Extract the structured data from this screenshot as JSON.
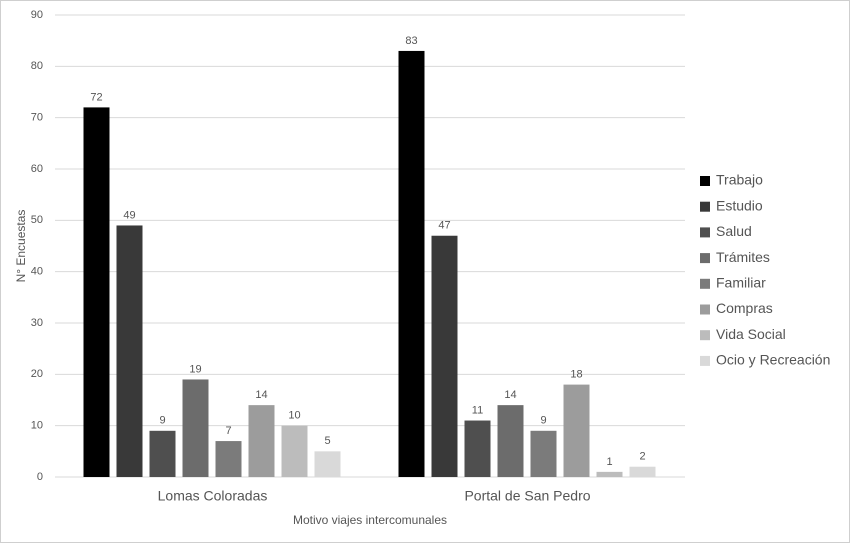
{
  "chart_data": {
    "type": "bar",
    "x_label": "Motivo viajes intercomunales",
    "y_label": "N° Encuestas",
    "categories": [
      "Lomas Coloradas",
      "Portal de San Pedro"
    ],
    "series": [
      {
        "name": "Trabajo",
        "color": "#000000",
        "values": [
          72,
          83
        ]
      },
      {
        "name": "Estudio",
        "color": "#393939",
        "values": [
          49,
          47
        ]
      },
      {
        "name": "Salud",
        "color": "#4f4f4f",
        "values": [
          9,
          11
        ]
      },
      {
        "name": "Trámites",
        "color": "#6c6c6c",
        "values": [
          19,
          14
        ]
      },
      {
        "name": "Familiar",
        "color": "#7b7b7b",
        "values": [
          7,
          9
        ]
      },
      {
        "name": "Compras",
        "color": "#9c9c9c",
        "values": [
          14,
          18
        ]
      },
      {
        "name": "Vida Social",
        "color": "#bcbcbc",
        "values": [
          10,
          1
        ]
      },
      {
        "name": "Ocio y Recreación",
        "color": "#d9d9d9",
        "values": [
          5,
          2
        ]
      }
    ],
    "ylim": [
      0,
      90
    ],
    "yticks": [
      0,
      10,
      20,
      30,
      40,
      50,
      60,
      70,
      80,
      90
    ],
    "grid": true,
    "legend": "right"
  }
}
